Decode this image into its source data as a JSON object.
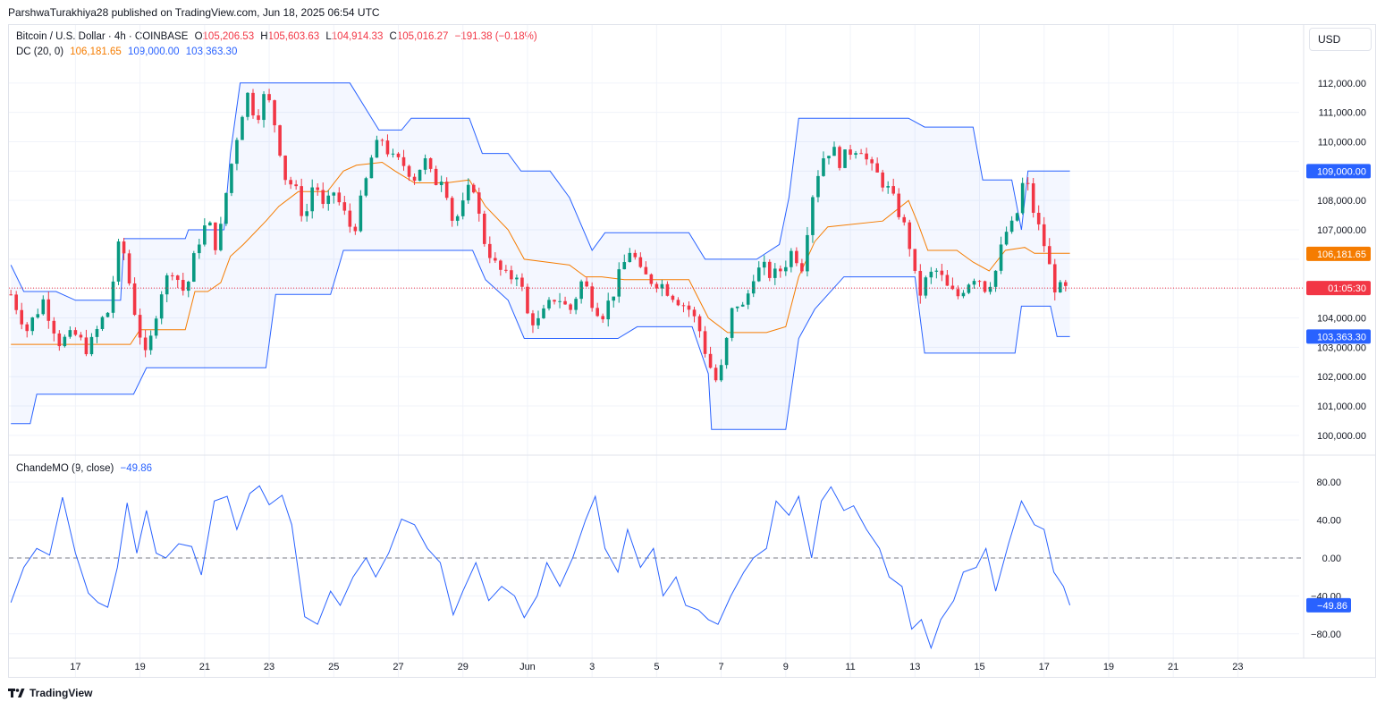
{
  "header": {
    "text": "ParshwaTurakhiya28 published on TradingView.com, Jun 18, 2025 06:54 UTC"
  },
  "legend": {
    "symbol": "Bitcoin / U.S. Dollar · 4h · COINBASE",
    "o_label": "O",
    "o": "105,206.53",
    "h_label": "H",
    "h": "105,603.63",
    "l_label": "L",
    "l": "104,914.33",
    "c_label": "C",
    "c": "105,016.27",
    "change": "−191.38 (−0.18%)",
    "dc_label": "DC (20, 0)",
    "dc_mid": "106,181.65",
    "dc_up": "109,000.00",
    "dc_low": "103,363.30",
    "cmo_label": "ChandeMO (9, close)",
    "cmo_val": "−49.86"
  },
  "currency_button": "USD",
  "footer": {
    "brand": "TradingView"
  },
  "colors": {
    "up": "#089981",
    "down": "#f23645",
    "dc_band": "#2962ff",
    "dc_mid": "#f57c00",
    "cmo": "#2962ff"
  },
  "price_badges": [
    {
      "text": "109,000.00",
      "value": 109000,
      "color": "#2962ff"
    },
    {
      "text": "106,181.65",
      "value": 106181.65,
      "color": "#f57c00"
    },
    {
      "text": "01:05:30",
      "value": 105016.27,
      "color": "#f23645"
    },
    {
      "text": "103,363.30",
      "value": 103363.3,
      "color": "#2962ff"
    }
  ],
  "cmo_badge": {
    "text": "−49.86",
    "value": -49.86,
    "color": "#2962ff"
  },
  "chart_data": {
    "type": "candlestick",
    "y_ticks": [
      "112,000.00",
      "111,000.00",
      "110,000.00",
      "108,000.00",
      "107,000.00",
      "104,000.00",
      "103,000.00",
      "102,000.00",
      "101,000.00",
      "100,000.00"
    ],
    "y_tick_values": [
      112000,
      111000,
      110000,
      108000,
      107000,
      104000,
      103000,
      102000,
      101000,
      100000
    ],
    "ylim": [
      99600,
      113000
    ],
    "x_ticks": [
      "17",
      "19",
      "21",
      "23",
      "25",
      "27",
      "29",
      "Jun",
      "3",
      "5",
      "7",
      "9",
      "11",
      "13",
      "15",
      "17",
      "19",
      "21",
      "23"
    ],
    "x_tick_days": [
      -15,
      -13,
      -11,
      -9,
      -7,
      -5,
      -3,
      -1,
      1,
      3,
      5,
      7,
      9,
      11,
      13,
      15,
      17,
      19,
      21
    ],
    "x_unit": "days from 1 Jun 2025, 4h bars",
    "close_anchors": [
      [
        -17.0,
        104800
      ],
      [
        -16.5,
        103600
      ],
      [
        -16.0,
        104600
      ],
      [
        -15.5,
        103200
      ],
      [
        -15.0,
        103400
      ],
      [
        -14.6,
        102900
      ],
      [
        -14.2,
        103900
      ],
      [
        -14.0,
        104200
      ],
      [
        -13.6,
        106800
      ],
      [
        -13.2,
        104400
      ],
      [
        -12.8,
        102500
      ],
      [
        -12.4,
        104800
      ],
      [
        -12.0,
        105700
      ],
      [
        -11.6,
        104800
      ],
      [
        -11.2,
        106600
      ],
      [
        -10.9,
        107300
      ],
      [
        -10.6,
        106300
      ],
      [
        -10.3,
        108500
      ],
      [
        -10.0,
        110200
      ],
      [
        -9.7,
        111700
      ],
      [
        -9.4,
        110800
      ],
      [
        -9.1,
        111700
      ],
      [
        -8.8,
        110500
      ],
      [
        -8.5,
        108800
      ],
      [
        -8.2,
        108400
      ],
      [
        -7.9,
        107300
      ],
      [
        -7.6,
        108800
      ],
      [
        -7.3,
        107600
      ],
      [
        -7.0,
        108300
      ],
      [
        -6.7,
        107600
      ],
      [
        -6.4,
        106900
      ],
      [
        -6.1,
        108200
      ],
      [
        -5.8,
        109600
      ],
      [
        -5.5,
        110100
      ],
      [
        -5.2,
        109400
      ],
      [
        -4.8,
        109200
      ],
      [
        -4.5,
        108800
      ],
      [
        -4.2,
        109400
      ],
      [
        -3.9,
        108600
      ],
      [
        -3.6,
        108900
      ],
      [
        -3.3,
        107200
      ],
      [
        -3.0,
        107800
      ],
      [
        -2.7,
        108700
      ],
      [
        -2.4,
        106800
      ],
      [
        -2.0,
        105800
      ],
      [
        -1.6,
        105300
      ],
      [
        -1.3,
        105600
      ],
      [
        -1.0,
        104100
      ],
      [
        -0.7,
        103800
      ],
      [
        -0.4,
        104300
      ],
      [
        -0.1,
        104800
      ],
      [
        0.3,
        104200
      ],
      [
        0.7,
        105300
      ],
      [
        1.0,
        104600
      ],
      [
        1.3,
        104100
      ],
      [
        1.6,
        104700
      ],
      [
        1.9,
        105600
      ],
      [
        2.2,
        106400
      ],
      [
        2.5,
        105500
      ],
      [
        2.8,
        105300
      ],
      [
        3.1,
        105200
      ],
      [
        3.4,
        104900
      ],
      [
        3.7,
        104600
      ],
      [
        4.0,
        104300
      ],
      [
        4.3,
        103700
      ],
      [
        4.6,
        102500
      ],
      [
        4.9,
        101700
      ],
      [
        5.1,
        102800
      ],
      [
        5.4,
        104600
      ],
      [
        5.7,
        104300
      ],
      [
        6.0,
        105500
      ],
      [
        6.3,
        105700
      ],
      [
        6.6,
        105400
      ],
      [
        6.9,
        105700
      ],
      [
        7.2,
        106300
      ],
      [
        7.5,
        105800
      ],
      [
        7.8,
        108100
      ],
      [
        8.1,
        109400
      ],
      [
        8.4,
        109800
      ],
      [
        8.7,
        109300
      ],
      [
        9.0,
        109700
      ],
      [
        9.3,
        109900
      ],
      [
        9.6,
        109100
      ],
      [
        9.9,
        108800
      ],
      [
        10.2,
        108300
      ],
      [
        10.5,
        107600
      ],
      [
        10.8,
        106700
      ],
      [
        11.1,
        104700
      ],
      [
        11.4,
        105400
      ],
      [
        11.7,
        105600
      ],
      [
        12.0,
        105000
      ],
      [
        12.3,
        104700
      ],
      [
        12.6,
        105200
      ],
      [
        12.9,
        105500
      ],
      [
        13.2,
        105000
      ],
      [
        13.5,
        105600
      ],
      [
        13.8,
        106900
      ],
      [
        14.1,
        107200
      ],
      [
        14.4,
        108900
      ],
      [
        14.7,
        107500
      ],
      [
        15.0,
        106500
      ],
      [
        15.3,
        105100
      ],
      [
        15.6,
        104900
      ],
      [
        15.8,
        105016
      ]
    ],
    "donchian": {
      "upper": [
        [
          -17.0,
          105800
        ],
        [
          -16.6,
          104900
        ],
        [
          -15.6,
          104900
        ],
        [
          -15.0,
          104600
        ],
        [
          -13.6,
          104600
        ],
        [
          -13.5,
          106700
        ],
        [
          -11.6,
          106700
        ],
        [
          -11.5,
          107000
        ],
        [
          -10.4,
          107000
        ],
        [
          -10.2,
          109600
        ],
        [
          -9.9,
          112000
        ],
        [
          -9.2,
          112000
        ],
        [
          -9.0,
          112000
        ],
        [
          -7.1,
          112000
        ],
        [
          -6.5,
          112000
        ],
        [
          -5.6,
          110400
        ],
        [
          -4.9,
          110400
        ],
        [
          -4.6,
          110800
        ],
        [
          -2.8,
          110800
        ],
        [
          -2.4,
          109600
        ],
        [
          -1.6,
          109600
        ],
        [
          -1.2,
          109000
        ],
        [
          -0.3,
          109000
        ],
        [
          0.3,
          108100
        ],
        [
          1.0,
          106300
        ],
        [
          1.4,
          106900
        ],
        [
          2.9,
          106900
        ],
        [
          4.0,
          106900
        ],
        [
          4.5,
          106000
        ],
        [
          6.1,
          106000
        ],
        [
          6.8,
          106500
        ],
        [
          7.1,
          108100
        ],
        [
          7.4,
          110800
        ],
        [
          10.8,
          110800
        ],
        [
          11.3,
          110500
        ],
        [
          12.8,
          110500
        ],
        [
          13.1,
          108700
        ],
        [
          14.0,
          108700
        ],
        [
          14.3,
          107000
        ],
        [
          14.5,
          109000
        ],
        [
          15.8,
          109000
        ]
      ],
      "lower": [
        [
          -17.0,
          100400
        ],
        [
          -16.4,
          100400
        ],
        [
          -16.2,
          101400
        ],
        [
          -13.2,
          101400
        ],
        [
          -12.8,
          102300
        ],
        [
          -9.1,
          102300
        ],
        [
          -8.8,
          104800
        ],
        [
          -7.1,
          104800
        ],
        [
          -6.7,
          106300
        ],
        [
          -4.8,
          106300
        ],
        [
          -3.3,
          106300
        ],
        [
          -2.7,
          106300
        ],
        [
          -2.3,
          105300
        ],
        [
          -1.6,
          104600
        ],
        [
          -1.1,
          103300
        ],
        [
          1.8,
          103300
        ],
        [
          2.4,
          103700
        ],
        [
          4.1,
          103700
        ],
        [
          4.6,
          102100
        ],
        [
          4.7,
          100200
        ],
        [
          7.0,
          100200
        ],
        [
          7.4,
          103300
        ],
        [
          7.9,
          104300
        ],
        [
          8.8,
          105400
        ],
        [
          11.0,
          105400
        ],
        [
          11.3,
          102800
        ],
        [
          14.1,
          102800
        ],
        [
          14.3,
          104400
        ],
        [
          15.2,
          104400
        ],
        [
          15.4,
          103363
        ],
        [
          15.8,
          103363
        ]
      ],
      "middle": [
        [
          -17.0,
          103100
        ],
        [
          -13.3,
          103100
        ],
        [
          -13.0,
          103600
        ],
        [
          -11.6,
          103600
        ],
        [
          -11.3,
          104900
        ],
        [
          -10.9,
          104900
        ],
        [
          -10.5,
          105200
        ],
        [
          -10.2,
          106100
        ],
        [
          -9.8,
          106500
        ],
        [
          -9.1,
          107300
        ],
        [
          -8.7,
          107800
        ],
        [
          -8.1,
          108300
        ],
        [
          -7.2,
          108300
        ],
        [
          -6.7,
          109000
        ],
        [
          -6.3,
          109200
        ],
        [
          -5.5,
          109300
        ],
        [
          -5.1,
          109000
        ],
        [
          -4.5,
          108600
        ],
        [
          -3.5,
          108600
        ],
        [
          -2.8,
          108700
        ],
        [
          -2.3,
          107800
        ],
        [
          -1.6,
          107000
        ],
        [
          -1.1,
          106000
        ],
        [
          -0.4,
          105900
        ],
        [
          0.3,
          105800
        ],
        [
          0.8,
          105400
        ],
        [
          1.3,
          105400
        ],
        [
          2.0,
          105300
        ],
        [
          3.0,
          105300
        ],
        [
          4.0,
          105300
        ],
        [
          4.6,
          104000
        ],
        [
          5.2,
          103500
        ],
        [
          6.4,
          103500
        ],
        [
          7.0,
          103700
        ],
        [
          7.4,
          105400
        ],
        [
          7.9,
          106600
        ],
        [
          8.3,
          107100
        ],
        [
          10.0,
          107300
        ],
        [
          10.8,
          108000
        ],
        [
          11.1,
          107200
        ],
        [
          11.4,
          106300
        ],
        [
          12.3,
          106300
        ],
        [
          12.8,
          105900
        ],
        [
          13.3,
          105600
        ],
        [
          13.8,
          106300
        ],
        [
          14.4,
          106400
        ],
        [
          14.7,
          106200
        ],
        [
          15.8,
          106200
        ]
      ]
    },
    "cmo": {
      "ylim": [
        -100,
        98
      ],
      "y_ticks": [
        "80.00",
        "40.00",
        "0.00",
        "−40.00",
        "−80.00"
      ],
      "y_tick_values": [
        80,
        40,
        0,
        -40,
        -80
      ],
      "zero_line": 0,
      "values": [
        [
          -17.0,
          -47
        ],
        [
          -16.6,
          -10
        ],
        [
          -16.2,
          10
        ],
        [
          -15.8,
          3
        ],
        [
          -15.4,
          64
        ],
        [
          -15.0,
          5
        ],
        [
          -14.6,
          -37
        ],
        [
          -14.3,
          -47
        ],
        [
          -14.0,
          -52
        ],
        [
          -13.7,
          -10
        ],
        [
          -13.4,
          58
        ],
        [
          -13.1,
          5
        ],
        [
          -12.8,
          50
        ],
        [
          -12.5,
          5
        ],
        [
          -12.2,
          0
        ],
        [
          -11.8,
          15
        ],
        [
          -11.4,
          12
        ],
        [
          -11.1,
          -18
        ],
        [
          -10.7,
          60
        ],
        [
          -10.3,
          65
        ],
        [
          -10.0,
          30
        ],
        [
          -9.6,
          68
        ],
        [
          -9.3,
          76
        ],
        [
          -9.0,
          56
        ],
        [
          -8.6,
          66
        ],
        [
          -8.3,
          35
        ],
        [
          -7.9,
          -62
        ],
        [
          -7.5,
          -70
        ],
        [
          -7.1,
          -35
        ],
        [
          -6.8,
          -50
        ],
        [
          -6.4,
          -20
        ],
        [
          -6.0,
          0
        ],
        [
          -5.7,
          -20
        ],
        [
          -5.3,
          5
        ],
        [
          -4.9,
          41
        ],
        [
          -4.5,
          35
        ],
        [
          -4.1,
          10
        ],
        [
          -3.7,
          -5
        ],
        [
          -3.3,
          -60
        ],
        [
          -3.0,
          -35
        ],
        [
          -2.6,
          -5
        ],
        [
          -2.2,
          -45
        ],
        [
          -1.8,
          -30
        ],
        [
          -1.4,
          -40
        ],
        [
          -1.1,
          -63
        ],
        [
          -0.7,
          -40
        ],
        [
          -0.4,
          -5
        ],
        [
          0.0,
          -30
        ],
        [
          0.4,
          0
        ],
        [
          0.8,
          40
        ],
        [
          1.1,
          65
        ],
        [
          1.4,
          10
        ],
        [
          1.8,
          -15
        ],
        [
          2.1,
          30
        ],
        [
          2.5,
          -10
        ],
        [
          2.9,
          10
        ],
        [
          3.2,
          -40
        ],
        [
          3.6,
          -20
        ],
        [
          3.9,
          -50
        ],
        [
          4.3,
          -55
        ],
        [
          4.6,
          -65
        ],
        [
          4.9,
          -70
        ],
        [
          5.3,
          -40
        ],
        [
          5.7,
          -15
        ],
        [
          6.0,
          0
        ],
        [
          6.4,
          10
        ],
        [
          6.7,
          60
        ],
        [
          7.1,
          45
        ],
        [
          7.4,
          65
        ],
        [
          7.8,
          0
        ],
        [
          8.1,
          60
        ],
        [
          8.4,
          75
        ],
        [
          8.8,
          50
        ],
        [
          9.1,
          55
        ],
        [
          9.5,
          30
        ],
        [
          9.9,
          10
        ],
        [
          10.2,
          -20
        ],
        [
          10.6,
          -30
        ],
        [
          10.9,
          -75
        ],
        [
          11.2,
          -65
        ],
        [
          11.5,
          -95
        ],
        [
          11.8,
          -65
        ],
        [
          12.2,
          -45
        ],
        [
          12.5,
          -15
        ],
        [
          12.9,
          -10
        ],
        [
          13.2,
          10
        ],
        [
          13.5,
          -35
        ],
        [
          13.9,
          15
        ],
        [
          14.3,
          60
        ],
        [
          14.7,
          35
        ],
        [
          15.0,
          30
        ],
        [
          15.3,
          -15
        ],
        [
          15.6,
          -30
        ],
        [
          15.8,
          -49.86
        ]
      ]
    }
  }
}
